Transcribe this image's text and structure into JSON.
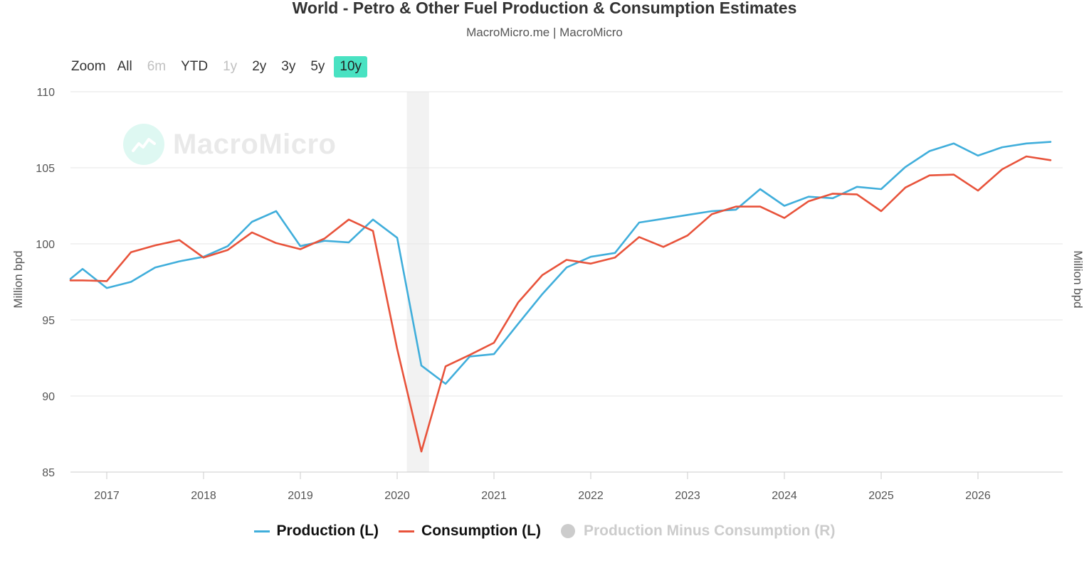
{
  "header": {
    "title": "World - Petro & Other Fuel Production & Consumption Estimates",
    "subtitle": "MacroMicro.me | MacroMicro"
  },
  "watermark": {
    "text": "MacroMicro"
  },
  "zoom": {
    "label": "Zoom",
    "buttons": [
      {
        "label": "All",
        "state": "normal"
      },
      {
        "label": "6m",
        "state": "disabled"
      },
      {
        "label": "YTD",
        "state": "normal"
      },
      {
        "label": "1y",
        "state": "disabled"
      },
      {
        "label": "2y",
        "state": "normal"
      },
      {
        "label": "3y",
        "state": "normal"
      },
      {
        "label": "5y",
        "state": "normal"
      },
      {
        "label": "10y",
        "state": "active"
      }
    ]
  },
  "axes": {
    "left_label": "Million bpd",
    "right_label": "Million bpd"
  },
  "legend": {
    "items": [
      {
        "label": "Production (L)",
        "color": "#40aedb",
        "visible": true
      },
      {
        "label": "Consumption (L)",
        "color": "#e8533b",
        "visible": true
      },
      {
        "label": "Production Minus Consumption (R)",
        "color": "#cccccc",
        "visible": false
      }
    ]
  },
  "chart_data": {
    "type": "line",
    "title": "World - Petro & Other Fuel Production & Consumption Estimates",
    "ylabel": "Million bpd",
    "ylim": [
      85,
      110
    ],
    "yticks": [
      85,
      90,
      95,
      100,
      105,
      110
    ],
    "xlim": [
      2016.625,
      2026.875
    ],
    "xticks": [
      2017,
      2018,
      2019,
      2020,
      2021,
      2022,
      2023,
      2024,
      2025,
      2026
    ],
    "xticklabels": [
      "2017",
      "2018",
      "2019",
      "2020",
      "2021",
      "2022",
      "2023",
      "2024",
      "2025",
      "2026"
    ],
    "grid": true,
    "highlight_band": [
      2020.1,
      2020.33
    ],
    "series": [
      {
        "name": "Production (L)",
        "color": "#40aedb",
        "x": [
          2016.625,
          2016.75,
          2017.0,
          2017.25,
          2017.5,
          2017.75,
          2018.0,
          2018.25,
          2018.5,
          2018.75,
          2019.0,
          2019.25,
          2019.5,
          2019.75,
          2020.0,
          2020.25,
          2020.5,
          2020.75,
          2021.0,
          2021.25,
          2021.5,
          2021.75,
          2022.0,
          2022.25,
          2022.5,
          2022.75,
          2023.0,
          2023.25,
          2023.5,
          2023.75,
          2024.0,
          2024.25,
          2024.5,
          2024.75,
          2025.0,
          2025.25,
          2025.5,
          2025.75,
          2026.0,
          2026.25,
          2026.5,
          2026.75
        ],
        "values": [
          97.7,
          98.35,
          97.1,
          97.5,
          98.45,
          98.85,
          99.15,
          99.85,
          101.45,
          102.15,
          99.85,
          100.2,
          100.1,
          101.6,
          100.4,
          92.0,
          90.8,
          92.6,
          92.75,
          94.75,
          96.7,
          98.45,
          99.15,
          99.4,
          101.4,
          101.65,
          101.9,
          102.15,
          102.25,
          103.6,
          102.5,
          103.1,
          103.0,
          103.75,
          103.6,
          105.05,
          106.1,
          106.6,
          105.8,
          106.35,
          106.6,
          106.7
        ]
      },
      {
        "name": "Consumption (L)",
        "color": "#e8533b",
        "x": [
          2016.625,
          2016.75,
          2017.0,
          2017.25,
          2017.5,
          2017.75,
          2018.0,
          2018.25,
          2018.5,
          2018.75,
          2019.0,
          2019.25,
          2019.5,
          2019.75,
          2020.0,
          2020.25,
          2020.5,
          2020.75,
          2021.0,
          2021.25,
          2021.5,
          2021.75,
          2022.0,
          2022.25,
          2022.5,
          2022.75,
          2023.0,
          2023.25,
          2023.5,
          2023.75,
          2024.0,
          2024.25,
          2024.5,
          2024.75,
          2025.0,
          2025.25,
          2025.5,
          2025.75,
          2026.0,
          2026.25,
          2026.5,
          2026.75
        ],
        "values": [
          97.6,
          97.6,
          97.55,
          99.45,
          99.9,
          100.25,
          99.1,
          99.6,
          100.75,
          100.05,
          99.65,
          100.35,
          101.6,
          100.85,
          93.1,
          86.35,
          91.95,
          92.7,
          93.5,
          96.15,
          97.95,
          98.95,
          98.7,
          99.1,
          100.45,
          99.8,
          100.55,
          101.95,
          102.45,
          102.45,
          101.7,
          102.8,
          103.3,
          103.25,
          102.15,
          103.7,
          104.5,
          104.55,
          103.5,
          104.9,
          105.75,
          105.5
        ]
      }
    ]
  }
}
